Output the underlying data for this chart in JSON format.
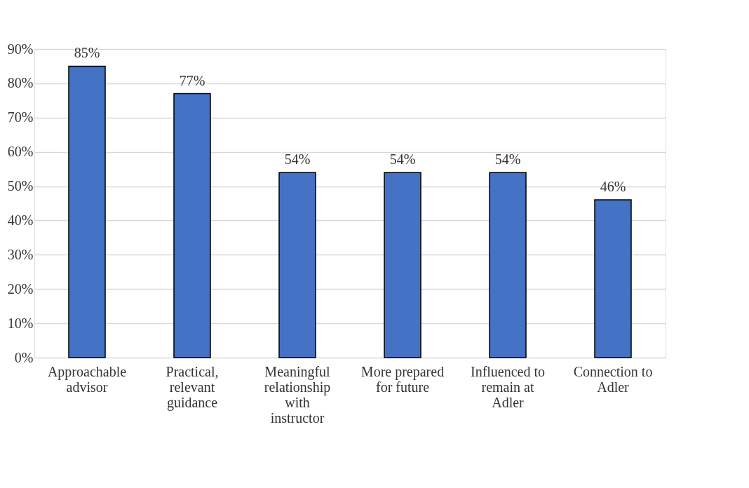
{
  "chart_data": {
    "type": "bar",
    "categories": [
      "Approachable advisor",
      "Practical, relevant guidance",
      "Meaningful relationship with instructor",
      "More prepared for future",
      "Influenced to remain at Adler",
      "Connection to Adler"
    ],
    "values": [
      85,
      77,
      54,
      54,
      54,
      46
    ],
    "value_labels": [
      "85%",
      "77%",
      "54%",
      "54%",
      "54%",
      "46%"
    ],
    "color": "#4472c4",
    "ylim": [
      0,
      90
    ],
    "yticks": [
      {
        "value": 0,
        "label": "0%"
      },
      {
        "value": 10,
        "label": "10%"
      },
      {
        "value": 20,
        "label": "20%"
      },
      {
        "value": 30,
        "label": "30%"
      },
      {
        "value": 40,
        "label": "40%"
      },
      {
        "value": 50,
        "label": "50%"
      },
      {
        "value": 60,
        "label": "60%"
      },
      {
        "value": 70,
        "label": "70%"
      },
      {
        "value": 80,
        "label": "80%"
      },
      {
        "value": 90,
        "label": "90%"
      }
    ],
    "grid": "y"
  }
}
